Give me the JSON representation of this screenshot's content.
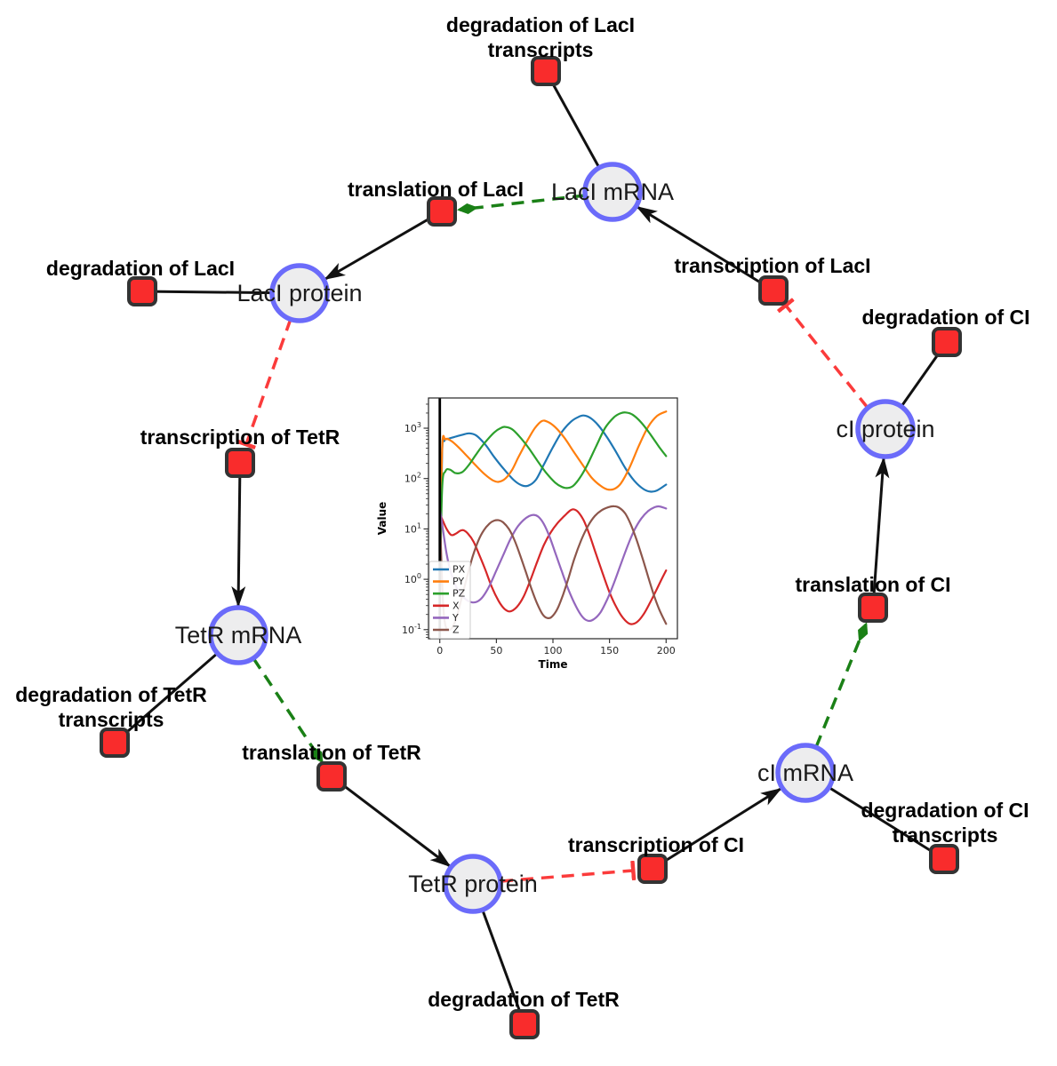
{
  "diagram": {
    "species": [
      {
        "id": "laci-mrna",
        "label": "LacI mRNA"
      },
      {
        "id": "laci-protein",
        "label": "LacI protein"
      },
      {
        "id": "tetr-mrna",
        "label": "TetR mRNA"
      },
      {
        "id": "tetr-protein",
        "label": "TetR protein"
      },
      {
        "id": "ci-mrna",
        "label": "cI mRNA"
      },
      {
        "id": "ci-protein",
        "label": "cI protein"
      }
    ],
    "reactions": [
      {
        "id": "deg-laci-transcripts",
        "lines": [
          "degradation of LacI",
          "transcripts"
        ]
      },
      {
        "id": "translation-laci",
        "lines": [
          "translation of LacI"
        ]
      },
      {
        "id": "deg-laci",
        "lines": [
          "degradation of LacI"
        ]
      },
      {
        "id": "transcription-laci",
        "lines": [
          "transcription of LacI"
        ]
      },
      {
        "id": "deg-ci",
        "lines": [
          "degradation of CI"
        ]
      },
      {
        "id": "transcription-tetr",
        "lines": [
          "transcription of TetR"
        ]
      },
      {
        "id": "deg-tetr-transcripts",
        "lines": [
          "degradation of TetR",
          "transcripts"
        ]
      },
      {
        "id": "translation-tetr",
        "lines": [
          "translation of TetR"
        ]
      },
      {
        "id": "deg-tetr",
        "lines": [
          "degradation of TetR"
        ]
      },
      {
        "id": "transcription-ci",
        "lines": [
          "transcription of CI"
        ]
      },
      {
        "id": "deg-ci-transcripts",
        "lines": [
          "degradation of CI",
          "transcripts"
        ]
      },
      {
        "id": "translation-ci",
        "lines": [
          "translation of CI"
        ]
      }
    ],
    "edges": [
      {
        "from": "laci-mrna",
        "to": "deg-laci-transcripts",
        "type": "consumption"
      },
      {
        "from": "transcription-laci",
        "to": "laci-mrna",
        "type": "production"
      },
      {
        "from": "laci-mrna",
        "to": "translation-laci",
        "type": "modifier"
      },
      {
        "from": "translation-laci",
        "to": "laci-protein",
        "type": "production"
      },
      {
        "from": "laci-protein",
        "to": "deg-laci",
        "type": "consumption"
      },
      {
        "from": "laci-protein",
        "to": "transcription-tetr",
        "type": "inhibition"
      },
      {
        "from": "transcription-tetr",
        "to": "tetr-mrna",
        "type": "production"
      },
      {
        "from": "tetr-mrna",
        "to": "deg-tetr-transcripts",
        "type": "consumption"
      },
      {
        "from": "tetr-mrna",
        "to": "translation-tetr",
        "type": "modifier"
      },
      {
        "from": "translation-tetr",
        "to": "tetr-protein",
        "type": "production"
      },
      {
        "from": "tetr-protein",
        "to": "deg-tetr",
        "type": "consumption"
      },
      {
        "from": "tetr-protein",
        "to": "transcription-ci",
        "type": "inhibition"
      },
      {
        "from": "transcription-ci",
        "to": "ci-mrna",
        "type": "production"
      },
      {
        "from": "ci-mrna",
        "to": "deg-ci-transcripts",
        "type": "consumption"
      },
      {
        "from": "ci-mrna",
        "to": "translation-ci",
        "type": "modifier"
      },
      {
        "from": "translation-ci",
        "to": "ci-protein",
        "type": "production"
      },
      {
        "from": "ci-protein",
        "to": "deg-ci",
        "type": "consumption"
      },
      {
        "from": "ci-protein",
        "to": "transcription-laci",
        "type": "inhibition"
      }
    ],
    "colors": {
      "species_fill": "#ededee",
      "species_stroke": "#6b6bfa",
      "reaction_fill": "#f92c2c",
      "reaction_stroke": "#333333",
      "consumption_edge": "#111111",
      "modifier_edge": "#1a8016",
      "inhibition_edge": "#fb3b3b"
    }
  },
  "chart_data": {
    "type": "line",
    "title": "",
    "xlabel": "Time",
    "ylabel": "Value",
    "yscale": "log",
    "xlim": [
      -10,
      210
    ],
    "ylim_log10": [
      -1.18,
      3.6
    ],
    "x_ticks": [
      0,
      50,
      100,
      150,
      200
    ],
    "y_tick_exponents": [
      -1,
      0,
      1,
      2,
      3
    ],
    "grid": false,
    "legend": {
      "position": "lower left",
      "entries": [
        "PX",
        "PY",
        "PZ",
        "X",
        "Y",
        "Z"
      ]
    },
    "annotations": [
      {
        "type": "vline",
        "x": 0,
        "color": "#000000"
      }
    ],
    "series": [
      {
        "name": "PX",
        "color": "#1f77b4",
        "points": [
          [
            0,
            0.4
          ],
          [
            2,
            300
          ],
          [
            4,
            560
          ],
          [
            8,
            620
          ],
          [
            14,
            680
          ],
          [
            20,
            740
          ],
          [
            26,
            790
          ],
          [
            32,
            720
          ],
          [
            40,
            480
          ],
          [
            48,
            270
          ],
          [
            56,
            160
          ],
          [
            65,
            95
          ],
          [
            72,
            74
          ],
          [
            78,
            72
          ],
          [
            85,
            95
          ],
          [
            92,
            190
          ],
          [
            100,
            420
          ],
          [
            108,
            850
          ],
          [
            116,
            1350
          ],
          [
            122,
            1650
          ],
          [
            127,
            1790
          ],
          [
            133,
            1600
          ],
          [
            140,
            1150
          ],
          [
            148,
            650
          ],
          [
            156,
            330
          ],
          [
            164,
            160
          ],
          [
            172,
            90
          ],
          [
            180,
            62
          ],
          [
            186,
            55
          ],
          [
            192,
            58
          ],
          [
            200,
            76
          ]
        ]
      },
      {
        "name": "PY",
        "color": "#ff7f0e",
        "points": [
          [
            0,
            0.4
          ],
          [
            2,
            350
          ],
          [
            5,
            600
          ],
          [
            10,
            560
          ],
          [
            16,
            430
          ],
          [
            24,
            280
          ],
          [
            32,
            180
          ],
          [
            40,
            120
          ],
          [
            47,
            92
          ],
          [
            52,
            86
          ],
          [
            58,
            100
          ],
          [
            64,
            150
          ],
          [
            70,
            280
          ],
          [
            78,
            600
          ],
          [
            84,
            1000
          ],
          [
            90,
            1380
          ],
          [
            95,
            1350
          ],
          [
            102,
            1050
          ],
          [
            110,
            650
          ],
          [
            118,
            350
          ],
          [
            126,
            190
          ],
          [
            134,
            105
          ],
          [
            142,
            72
          ],
          [
            148,
            61
          ],
          [
            154,
            62
          ],
          [
            160,
            80
          ],
          [
            168,
            170
          ],
          [
            176,
            450
          ],
          [
            184,
            1050
          ],
          [
            192,
            1750
          ],
          [
            200,
            2150
          ]
        ]
      },
      {
        "name": "PZ",
        "color": "#2ca02c",
        "points": [
          [
            0,
            0.4
          ],
          [
            2,
            60
          ],
          [
            5,
            140
          ],
          [
            9,
            150
          ],
          [
            14,
            128
          ],
          [
            20,
            135
          ],
          [
            26,
            190
          ],
          [
            32,
            300
          ],
          [
            40,
            520
          ],
          [
            48,
            820
          ],
          [
            54,
            1010
          ],
          [
            58,
            1060
          ],
          [
            64,
            950
          ],
          [
            70,
            700
          ],
          [
            78,
            420
          ],
          [
            86,
            230
          ],
          [
            94,
            130
          ],
          [
            102,
            83
          ],
          [
            108,
            68
          ],
          [
            113,
            65
          ],
          [
            118,
            72
          ],
          [
            124,
            105
          ],
          [
            130,
            180
          ],
          [
            138,
            430
          ],
          [
            146,
            1000
          ],
          [
            154,
            1650
          ],
          [
            160,
            1990
          ],
          [
            164,
            2050
          ],
          [
            170,
            1880
          ],
          [
            178,
            1300
          ],
          [
            186,
            760
          ],
          [
            194,
            420
          ],
          [
            200,
            280
          ]
        ]
      },
      {
        "name": "X",
        "color": "#d62728",
        "points": [
          [
            0,
            20
          ],
          [
            3,
            14
          ],
          [
            6,
            10
          ],
          [
            10,
            7.6
          ],
          [
            14,
            8
          ],
          [
            18,
            9.2
          ],
          [
            21,
            9.4
          ],
          [
            25,
            8
          ],
          [
            30,
            5.5
          ],
          [
            35,
            3
          ],
          [
            40,
            1.6
          ],
          [
            46,
            0.7
          ],
          [
            52,
            0.37
          ],
          [
            57,
            0.26
          ],
          [
            62,
            0.23
          ],
          [
            68,
            0.28
          ],
          [
            74,
            0.45
          ],
          [
            80,
            0.95
          ],
          [
            86,
            2.2
          ],
          [
            92,
            4.8
          ],
          [
            98,
            8.5
          ],
          [
            104,
            13
          ],
          [
            110,
            18
          ],
          [
            115,
            23
          ],
          [
            118,
            24.5
          ],
          [
            122,
            22
          ],
          [
            127,
            15
          ],
          [
            132,
            8
          ],
          [
            138,
            3.2
          ],
          [
            144,
            1.3
          ],
          [
            150,
            0.55
          ],
          [
            156,
            0.28
          ],
          [
            162,
            0.17
          ],
          [
            168,
            0.13
          ],
          [
            174,
            0.14
          ],
          [
            180,
            0.2
          ],
          [
            186,
            0.35
          ],
          [
            192,
            0.65
          ],
          [
            196,
            1
          ],
          [
            200,
            1.5
          ]
        ]
      },
      {
        "name": "Y",
        "color": "#9467bd",
        "points": [
          [
            0,
            25
          ],
          [
            3,
            9
          ],
          [
            6,
            3.2
          ],
          [
            10,
            1.3
          ],
          [
            14,
            0.75
          ],
          [
            18,
            0.52
          ],
          [
            23,
            0.4
          ],
          [
            28,
            0.35
          ],
          [
            33,
            0.36
          ],
          [
            38,
            0.45
          ],
          [
            44,
            0.75
          ],
          [
            50,
            1.5
          ],
          [
            56,
            3
          ],
          [
            62,
            6
          ],
          [
            68,
            10.5
          ],
          [
            74,
            15
          ],
          [
            79,
            18
          ],
          [
            83,
            19
          ],
          [
            87,
            17.5
          ],
          [
            92,
            12.5
          ],
          [
            97,
            7
          ],
          [
            102,
            3.4
          ],
          [
            108,
            1.4
          ],
          [
            114,
            0.6
          ],
          [
            120,
            0.3
          ],
          [
            126,
            0.18
          ],
          [
            131,
            0.15
          ],
          [
            136,
            0.16
          ],
          [
            142,
            0.22
          ],
          [
            148,
            0.4
          ],
          [
            154,
            0.85
          ],
          [
            160,
            2
          ],
          [
            166,
            4.6
          ],
          [
            172,
            9.5
          ],
          [
            178,
            16
          ],
          [
            184,
            22.5
          ],
          [
            190,
            27
          ],
          [
            194,
            28
          ],
          [
            200,
            25.5
          ]
        ]
      },
      {
        "name": "Z",
        "color": "#8c564b",
        "points": [
          [
            0,
            25
          ],
          [
            1.5,
            2
          ],
          [
            3,
            0.3
          ],
          [
            5,
            0.12
          ],
          [
            8,
            0.1
          ],
          [
            11,
            0.11
          ],
          [
            15,
            0.18
          ],
          [
            19,
            0.4
          ],
          [
            24,
            1.1
          ],
          [
            29,
            2.8
          ],
          [
            34,
            5.8
          ],
          [
            39,
            9.5
          ],
          [
            44,
            12.8
          ],
          [
            48,
            14.6
          ],
          [
            52,
            14.9
          ],
          [
            56,
            13.5
          ],
          [
            61,
            10
          ],
          [
            66,
            6
          ],
          [
            71,
            3
          ],
          [
            76,
            1.4
          ],
          [
            81,
            0.65
          ],
          [
            86,
            0.33
          ],
          [
            91,
            0.2
          ],
          [
            95,
            0.17
          ],
          [
            99,
            0.18
          ],
          [
            104,
            0.26
          ],
          [
            109,
            0.5
          ],
          [
            114,
            1.1
          ],
          [
            119,
            2.6
          ],
          [
            125,
            6
          ],
          [
            131,
            11.5
          ],
          [
            137,
            18
          ],
          [
            143,
            23.5
          ],
          [
            149,
            27
          ],
          [
            154,
            28.2
          ],
          [
            159,
            26
          ],
          [
            164,
            20
          ],
          [
            169,
            12
          ],
          [
            174,
            6
          ],
          [
            179,
            2.7
          ],
          [
            184,
            1.15
          ],
          [
            189,
            0.5
          ],
          [
            194,
            0.25
          ],
          [
            200,
            0.13
          ]
        ]
      }
    ]
  }
}
